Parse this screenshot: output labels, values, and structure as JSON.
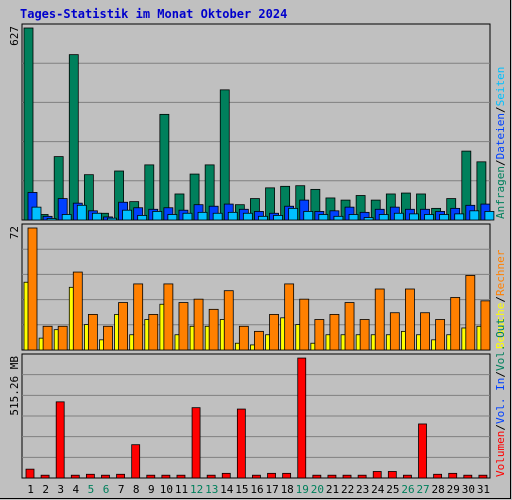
{
  "title": "Tages-Statistik im Monat Oktober 2024",
  "colors": {
    "background": "#c0c0c0",
    "plot_bg": "#c0c0c0",
    "gridline": "#808080",
    "title": "#0000cc",
    "anfragen": "#00805c",
    "dateien": "#0040ff",
    "seiten": "#00c0ff",
    "besuche": "#ffff00",
    "rechner": "#ff8000",
    "volumen": "#ff0000",
    "weekend_label": "#00805c",
    "weekday_label": "#000000"
  },
  "chart_data": [
    {
      "type": "bar",
      "name": "hits",
      "ymax_label": "627",
      "ymax": 627,
      "grid": true,
      "right_labels": [
        {
          "text": "Anfragen",
          "color": "#00805c"
        },
        {
          "text": "Dateien",
          "color": "#0040ff"
        },
        {
          "text": "Seiten",
          "color": "#00c0ff"
        }
      ],
      "right_separator": "/",
      "series": [
        {
          "key": "anfragen",
          "color": "#00805c",
          "values": [
            627,
            18,
            207,
            540,
            148,
            22,
            160,
            60,
            180,
            345,
            85,
            150,
            180,
            425,
            50,
            70,
            105,
            110,
            112,
            100,
            72,
            65,
            80,
            65,
            85,
            88,
            85,
            38,
            70,
            225,
            190
          ]
        },
        {
          "key": "dateien",
          "color": "#0040ff",
          "values": [
            90,
            12,
            70,
            55,
            30,
            10,
            58,
            40,
            35,
            40,
            32,
            50,
            45,
            52,
            35,
            28,
            22,
            45,
            65,
            28,
            30,
            42,
            25,
            35,
            42,
            35,
            35,
            28,
            38,
            48,
            52
          ]
        },
        {
          "key": "seiten",
          "color": "#00c0ff",
          "values": [
            42,
            5,
            18,
            48,
            22,
            6,
            32,
            15,
            28,
            18,
            22,
            25,
            22,
            25,
            22,
            12,
            15,
            38,
            28,
            18,
            12,
            18,
            8,
            18,
            22,
            20,
            18,
            18,
            20,
            30,
            28
          ]
        }
      ]
    },
    {
      "type": "bar",
      "name": "visits",
      "ymax_label": "72",
      "ymax": 72,
      "grid": true,
      "right_labels": [
        {
          "text": "Besuche",
          "color": "#ffff00"
        },
        {
          "text": "Rechner",
          "color": "#ff8000"
        }
      ],
      "right_separator": "/",
      "series": [
        {
          "key": "besuche",
          "color": "#ffff00",
          "values": [
            40,
            7,
            12,
            37,
            15,
            6,
            21,
            9,
            18,
            27,
            9,
            14,
            14,
            18,
            4,
            3,
            9,
            19,
            15,
            4,
            9,
            9,
            9,
            9,
            9,
            11,
            9,
            6,
            9,
            13,
            14
          ]
        },
        {
          "key": "rechner",
          "color": "#ff8000",
          "values": [
            72,
            14,
            14,
            46,
            21,
            14,
            28,
            39,
            21,
            39,
            28,
            30,
            24,
            35,
            14,
            11,
            21,
            39,
            30,
            18,
            21,
            28,
            18,
            36,
            22,
            36,
            22,
            18,
            31,
            44,
            29
          ]
        }
      ]
    },
    {
      "type": "bar",
      "name": "volume",
      "ymax_label": "515.26 MB",
      "ymax": 515.26,
      "grid": true,
      "right_labels": [
        {
          "text": "Volumen",
          "color": "#ff0000"
        },
        {
          "text": "Vol. In",
          "color": "#0040ff"
        },
        {
          "text": "Vol. Out",
          "color": "#00805c"
        }
      ],
      "right_separator": "/",
      "series": [
        {
          "key": "volumen",
          "color": "#ff0000",
          "values": [
            38,
            12,
            327,
            12,
            16,
            12,
            16,
            143,
            12,
            12,
            12,
            302,
            12,
            20,
            296,
            12,
            20,
            20,
            515,
            12,
            12,
            12,
            12,
            28,
            28,
            12,
            232,
            16,
            20,
            12,
            12
          ]
        }
      ]
    }
  ],
  "x_labels": [
    "1",
    "2",
    "3",
    "4",
    "5",
    "6",
    "7",
    "8",
    "9",
    "10",
    "11",
    "12",
    "13",
    "14",
    "15",
    "16",
    "17",
    "18",
    "19",
    "20",
    "21",
    "22",
    "23",
    "24",
    "25",
    "26",
    "27",
    "28",
    "29",
    "30",
    "31"
  ],
  "weekend_days": [
    5,
    6,
    12,
    13,
    19,
    20,
    26,
    27
  ]
}
